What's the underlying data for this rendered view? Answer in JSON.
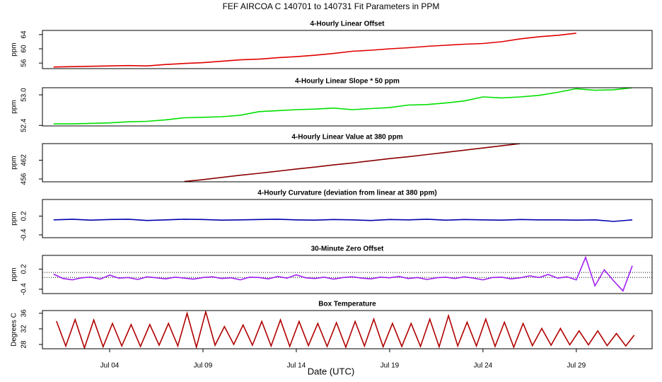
{
  "title": "FEF   AIRCOA C   140701 to 140731   Fit Parameters in PPM",
  "x_label": "Date (UTC)",
  "chart_data": [
    {
      "type": "line",
      "title": "4-Hourly Linear Offset",
      "y_label": "ppm",
      "color": "#e00000",
      "xlim": [
        0.4,
        33.06
      ],
      "ylim": [
        54.44,
        65.17
      ],
      "yticks": [
        56,
        60,
        64
      ],
      "x": [
        1,
        2,
        3,
        4,
        5,
        6,
        7,
        8,
        9,
        10,
        11,
        12,
        13,
        14,
        15,
        16,
        17,
        18,
        19,
        20,
        21,
        22,
        23,
        24,
        25,
        26,
        27,
        28,
        29
      ],
      "values": [
        54.9,
        55.0,
        55.1,
        55.2,
        55.3,
        55.2,
        55.6,
        55.9,
        56.1,
        56.5,
        56.9,
        57.1,
        57.5,
        57.8,
        58.2,
        58.7,
        59.3,
        59.6,
        60.0,
        60.3,
        60.7,
        61.0,
        61.3,
        61.5,
        62.0,
        62.8,
        63.4,
        63.8,
        64.4
      ]
    },
    {
      "type": "line",
      "title": "4-Hourly Linear Slope * 50 ppm",
      "y_label": "ppm",
      "color": "#00e000",
      "xlim": [
        0.4,
        33.06
      ],
      "ylim": [
        52.39,
        53.14
      ],
      "yticks": [
        {
          "value": 52.4,
          "label": "52.4"
        },
        {
          "value": 53.0,
          "label": "53.0"
        }
      ],
      "x": [
        1,
        2,
        3,
        4,
        5,
        6,
        7,
        8,
        9,
        10,
        11,
        12,
        13,
        14,
        15,
        16,
        17,
        18,
        19,
        20,
        21,
        22,
        23,
        24,
        25,
        26,
        27,
        28,
        29,
        30,
        31,
        32
      ],
      "values": [
        52.43,
        52.43,
        52.44,
        52.45,
        52.47,
        52.48,
        52.51,
        52.55,
        52.56,
        52.57,
        52.6,
        52.67,
        52.69,
        52.71,
        52.72,
        52.74,
        52.71,
        52.73,
        52.75,
        52.8,
        52.81,
        52.84,
        52.88,
        52.96,
        52.94,
        52.96,
        52.99,
        53.05,
        53.12,
        53.09,
        53.1,
        53.14
      ]
    },
    {
      "type": "line",
      "title": "4-Hourly Linear Value at 380 ppm",
      "y_label": "ppm",
      "color": "#8b0000",
      "xlim": [
        0.4,
        33.06
      ],
      "ylim": [
        455.1,
        467.3
      ],
      "yticks": [
        456,
        462
      ],
      "x": [
        8,
        9,
        10,
        11,
        12,
        13,
        14,
        15,
        16,
        17,
        18,
        19,
        20,
        21,
        22,
        23,
        24,
        25,
        26
      ],
      "values": [
        455.2,
        455.8,
        456.5,
        457.2,
        457.8,
        458.5,
        459.2,
        459.8,
        460.5,
        461.1,
        461.8,
        462.5,
        463.1,
        463.8,
        464.5,
        465.2,
        465.9,
        466.6,
        467.3
      ]
    },
    {
      "type": "line",
      "title": "4-Hourly Curvature (deviation from linear at 380 ppm)",
      "y_label": "ppm",
      "color": "#0000b0",
      "xlim": [
        0.4,
        33.06
      ],
      "ylim": [
        -0.49,
        0.73
      ],
      "yticks": [
        -0.4,
        0.2
      ],
      "x": [
        1,
        2,
        3,
        4,
        5,
        6,
        7,
        8,
        9,
        10,
        11,
        12,
        13,
        14,
        15,
        16,
        17,
        18,
        19,
        20,
        21,
        22,
        23,
        24,
        25,
        26,
        27,
        28,
        29,
        30,
        31,
        32
      ],
      "values": [
        0.08,
        0.1,
        0.07,
        0.09,
        0.1,
        0.06,
        0.08,
        0.1,
        0.09,
        0.07,
        0.08,
        0.09,
        0.1,
        0.08,
        0.07,
        0.09,
        0.08,
        0.06,
        0.09,
        0.08,
        0.1,
        0.07,
        0.09,
        0.08,
        0.07,
        0.09,
        0.08,
        0.08,
        0.07,
        0.08,
        0.03,
        0.08
      ]
    },
    {
      "type": "line",
      "title": "30-Minute Zero Offset",
      "y_label": "ppm",
      "color": "#a020f0",
      "xlim": [
        0.4,
        33.06
      ],
      "ylim": [
        -0.53,
        0.61
      ],
      "yticks": [
        -0.4,
        0.2
      ],
      "reference_lines": [
        0.1,
        -0.05
      ],
      "x": [
        1,
        1.5,
        2,
        2.5,
        3,
        3.5,
        4,
        4.5,
        5,
        5.5,
        6,
        6.5,
        7,
        7.5,
        8,
        8.5,
        9,
        9.5,
        10,
        10.5,
        11,
        11.5,
        12,
        12.5,
        13,
        13.5,
        14,
        14.5,
        15,
        15.5,
        16,
        16.5,
        17,
        17.5,
        18,
        18.5,
        19,
        19.5,
        20,
        20.5,
        21,
        21.5,
        22,
        22.5,
        23,
        23.5,
        24,
        24.5,
        25,
        25.5,
        26,
        26.5,
        27,
        27.5,
        28,
        28.5,
        29,
        29.5,
        30,
        30.5,
        31,
        31.5,
        32
      ],
      "values": [
        0.05,
        -0.08,
        -0.12,
        -0.06,
        -0.04,
        -0.1,
        0.02,
        -0.07,
        -0.05,
        -0.11,
        -0.03,
        -0.06,
        -0.09,
        -0.04,
        -0.07,
        -0.1,
        -0.05,
        -0.03,
        -0.08,
        -0.06,
        -0.12,
        -0.04,
        -0.05,
        -0.09,
        -0.02,
        -0.07,
        0.03,
        -0.06,
        -0.08,
        -0.04,
        -0.1,
        -0.05,
        -0.03,
        -0.07,
        -0.09,
        -0.04,
        -0.06,
        -0.02,
        -0.08,
        -0.05,
        -0.11,
        -0.06,
        -0.04,
        -0.08,
        -0.03,
        -0.07,
        -0.12,
        -0.05,
        -0.04,
        -0.09,
        -0.06,
        0.0,
        -0.05,
        0.04,
        -0.07,
        -0.03,
        -0.12,
        0.55,
        -0.3,
        0.18,
        -0.15,
        -0.45,
        0.3
      ]
    },
    {
      "type": "line",
      "title": "Box Temperature",
      "y_label": "Degrees C",
      "color": "#b00000",
      "xlim": [
        0.4,
        33.06
      ],
      "ylim": [
        26.9,
        36.7
      ],
      "yticks": [
        28,
        32,
        36
      ],
      "xticks": [
        {
          "value": 4,
          "label": "Jul 04"
        },
        {
          "value": 9,
          "label": "Jul 09"
        },
        {
          "value": 14,
          "label": "Jul 14"
        },
        {
          "value": 19,
          "label": "Jul 19"
        },
        {
          "value": 24,
          "label": "Jul 24"
        },
        {
          "value": 29,
          "label": "Jul 29"
        }
      ],
      "x": [
        1.15,
        1.65,
        2.15,
        2.65,
        3.15,
        3.65,
        4.15,
        4.65,
        5.15,
        5.65,
        6.15,
        6.65,
        7.15,
        7.65,
        8.15,
        8.65,
        9.15,
        9.65,
        10.15,
        10.65,
        11.15,
        11.65,
        12.15,
        12.65,
        13.15,
        13.65,
        14.15,
        14.65,
        15.15,
        15.65,
        16.15,
        16.65,
        17.15,
        17.65,
        18.15,
        18.65,
        19.15,
        19.65,
        20.15,
        20.65,
        21.15,
        21.65,
        22.15,
        22.65,
        23.15,
        23.65,
        24.15,
        24.65,
        25.15,
        25.65,
        26.15,
        26.65,
        27.15,
        27.65,
        28.15,
        28.65,
        29.15,
        29.65,
        30.15,
        30.65,
        31.15,
        31.65,
        32.1
      ],
      "values": [
        34.0,
        27.6,
        34.4,
        27.1,
        34.3,
        27.4,
        33.4,
        27.6,
        33.1,
        27.5,
        33.1,
        27.8,
        33.4,
        27.6,
        36.0,
        27.3,
        36.4,
        27.8,
        32.6,
        28.0,
        33.0,
        27.8,
        33.9,
        27.6,
        34.3,
        27.5,
        33.9,
        27.7,
        33.4,
        27.5,
        33.6,
        27.3,
        33.9,
        27.6,
        34.5,
        27.4,
        33.4,
        27.5,
        33.4,
        27.5,
        34.5,
        27.4,
        35.4,
        27.6,
        33.7,
        27.6,
        34.5,
        27.5,
        33.7,
        27.3,
        33.4,
        27.7,
        32.1,
        27.8,
        32.1,
        27.9,
        31.5,
        27.9,
        31.5,
        27.7,
        30.8,
        27.6,
        30.4
      ]
    }
  ]
}
